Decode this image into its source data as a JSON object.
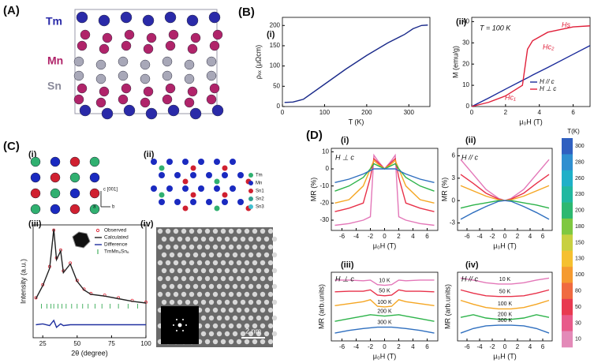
{
  "labels": {
    "A": "(A)",
    "B": "(B)",
    "C": "(C)",
    "D": "(D)"
  },
  "panel_A": {
    "atoms": [
      "Tm",
      "Mn",
      "Sn"
    ]
  },
  "panel_C": {
    "i": {
      "label": "(i)",
      "axes": [
        "c [001]",
        "a",
        "b"
      ]
    },
    "ii": {
      "label": "(ii)",
      "legend": [
        "Tm",
        "Mn",
        "Sn1",
        "Sn2",
        "Sn3"
      ]
    },
    "iv": {
      "label": "(iv)",
      "scale_bar": "2 nm"
    }
  },
  "colorbar": {
    "title": "T(K)",
    "categories": [
      "300",
      "280",
      "260",
      "230",
      "200",
      "180",
      "150",
      "130",
      "100",
      "80",
      "50",
      "30",
      "10"
    ],
    "colors": [
      "#3060c0",
      "#2f8fd0",
      "#1fb0c8",
      "#20b8a0",
      "#2db870",
      "#7fc840",
      "#c8d040",
      "#f5c030",
      "#f59a30",
      "#f06a40",
      "#e83a50",
      "#e85a8a",
      "#e38ab8"
    ]
  },
  "chart_data": [
    {
      "type": "line",
      "label": "(i)",
      "xlabel": "T (K)",
      "ylabel": "ρₓₓ (μΩcm)",
      "x": [
        5,
        25,
        50,
        100,
        150,
        200,
        250,
        290,
        310,
        330,
        345
      ],
      "series": [
        {
          "color": "#1a2a8a",
          "values": [
            10,
            11,
            18,
            55,
            92,
            126,
            157,
            178,
            192,
            200,
            201
          ]
        }
      ],
      "xlim": [
        0,
        350
      ],
      "ylim": [
        0,
        220
      ],
      "xticks": [
        0,
        100,
        200,
        300
      ],
      "yticks": [
        0,
        50,
        100,
        150,
        200
      ]
    },
    {
      "type": "line",
      "label": "(ii)",
      "xlabel": "μ₀H (T)",
      "ylabel": "M (emu/g)",
      "annotations": [
        "T = 100 K",
        "Hs",
        "Hc₂",
        "Hc₁"
      ],
      "x": [
        0,
        1,
        2,
        3,
        3.3,
        3.6,
        4.5,
        6,
        7
      ],
      "series": [
        {
          "name": "H // c",
          "color": "#1a2a9a",
          "values": [
            0,
            4,
            8.2,
            12.3,
            13.5,
            14.8,
            18.4,
            24.6,
            28.7
          ]
        },
        {
          "name": "H ⊥ c",
          "color": "#e0203a",
          "values": [
            0,
            2,
            5,
            10,
            27,
            31,
            35,
            37.5,
            38
          ]
        }
      ],
      "xlim": [
        0,
        7
      ],
      "ylim": [
        0,
        42
      ],
      "xticks": [
        0,
        2,
        4,
        6
      ],
      "yticks": [
        0,
        10,
        20,
        30,
        40
      ]
    },
    {
      "type": "line",
      "label": "(iii)",
      "xlabel": "2θ (degree)",
      "ylabel": "Intensity (a.u.)",
      "x": [
        20,
        25,
        30,
        33,
        35,
        38,
        40,
        45,
        50,
        55,
        60,
        70,
        80,
        90,
        100
      ],
      "series": [
        {
          "name": "Observed",
          "color": "#e03040",
          "marker": "o",
          "values": [
            16,
            31,
            52,
            94,
            62,
            71,
            47,
            56,
            36,
            26,
            21,
            19,
            16,
            13,
            11
          ]
        },
        {
          "name": "Calculated",
          "color": "#222222",
          "values": [
            15,
            30,
            50,
            95,
            60,
            70,
            45,
            55,
            35,
            25,
            20,
            18,
            15,
            12,
            10
          ]
        },
        {
          "name": "Difference",
          "color": "#2030a0",
          "values": [
            -15,
            -14,
            -16,
            -10,
            -18,
            -14,
            -16,
            -15,
            -15,
            -15,
            -15,
            -15,
            -15,
            -15,
            -15
          ]
        },
        {
          "name": "TmMn₆Sn₆",
          "color": "#20a040",
          "positions": [
            24,
            28,
            31,
            33,
            36,
            39,
            42,
            46,
            50,
            54,
            58,
            63,
            68,
            74,
            80,
            87,
            94
          ]
        }
      ],
      "xlim": [
        18,
        100
      ],
      "ylim": [
        -30,
        100
      ],
      "xticks": [
        25,
        50,
        75,
        100
      ]
    },
    {
      "type": "line",
      "label": "(i)",
      "xlabel": "μ₀H (T)",
      "ylabel": "MR (%)",
      "annotations": [
        "H ⊥ c"
      ],
      "x": [
        -7,
        -5,
        -3,
        -2,
        -1.5,
        -1,
        0,
        1,
        1.5,
        2,
        3,
        5,
        7
      ],
      "series": [
        {
          "color": "#e377b8",
          "values": [
            -33,
            -32,
            -30,
            -28,
            8,
            5,
            0,
            5,
            8,
            -28,
            -30,
            -32,
            -33
          ]
        },
        {
          "color": "#e8324a",
          "values": [
            -25,
            -23,
            -20,
            -5,
            6,
            4,
            0,
            4,
            6,
            -5,
            -20,
            -23,
            -25
          ]
        },
        {
          "color": "#f5a623",
          "values": [
            -20,
            -18,
            -10,
            0,
            5,
            3,
            0,
            3,
            5,
            0,
            -10,
            -18,
            -20
          ]
        },
        {
          "color": "#2db34a",
          "values": [
            -13,
            -10,
            -5,
            0,
            3,
            2,
            0,
            2,
            3,
            0,
            -5,
            -10,
            -13
          ]
        },
        {
          "color": "#2f6fbf",
          "values": [
            -8,
            -6,
            -3,
            -1,
            0,
            0,
            0,
            0,
            0,
            -1,
            -3,
            -6,
            -8
          ]
        }
      ],
      "xlim": [
        -7.5,
        7.5
      ],
      "ylim": [
        -36,
        12
      ],
      "xticks": [
        -6,
        -4,
        -2,
        0,
        2,
        4,
        6
      ],
      "yticks": [
        10,
        0,
        -10,
        -20,
        -30
      ]
    },
    {
      "type": "line",
      "label": "(ii)",
      "xlabel": "μ₀H (T)",
      "ylabel": "MR (%)",
      "annotations": [
        "H // c"
      ],
      "x": [
        -7,
        -5,
        -3,
        -1,
        0,
        1,
        3,
        5,
        7
      ],
      "series": [
        {
          "color": "#e377b8",
          "values": [
            5.5,
            3.5,
            1.5,
            0.3,
            0,
            0.3,
            1.5,
            3.5,
            5.5
          ]
        },
        {
          "color": "#e8324a",
          "values": [
            3.5,
            2.3,
            1,
            0.2,
            0,
            0.2,
            1,
            2.3,
            3.5
          ]
        },
        {
          "color": "#f5a623",
          "values": [
            2,
            1.3,
            0.6,
            0.1,
            0,
            0.1,
            0.6,
            1.3,
            2
          ]
        },
        {
          "color": "#2db34a",
          "values": [
            -1,
            -0.6,
            -0.3,
            0,
            0,
            0,
            -0.3,
            -0.6,
            -1
          ]
        },
        {
          "color": "#2f6fbf",
          "values": [
            -2.5,
            -1.6,
            -0.8,
            -0.1,
            0,
            -0.1,
            -0.8,
            -1.6,
            -2.5
          ]
        }
      ],
      "xlim": [
        -7.5,
        7.5
      ],
      "ylim": [
        -4,
        7
      ],
      "xticks": [
        -6,
        -4,
        -2,
        0,
        2,
        4,
        6
      ],
      "yticks": [
        -3,
        0,
        3,
        6
      ]
    },
    {
      "type": "line",
      "label": "(iii)",
      "xlabel": "μ₀H (T)",
      "ylabel": "MR (arb.units)",
      "annotations": [
        "H ⊥ c"
      ],
      "label_curves": true,
      "x": [
        -7,
        -5,
        -3,
        -2,
        -1,
        0,
        1,
        2,
        3,
        5,
        7
      ],
      "series": [
        {
          "name": "10 K",
          "color": "#e377b8",
          "values": [
            9.3,
            9.3,
            9.2,
            9.3,
            8.6,
            8.5,
            8.6,
            9.3,
            9.2,
            9.3,
            9.3
          ]
        },
        {
          "name": "50 K",
          "color": "#e8324a",
          "values": [
            7.5,
            7.6,
            7.6,
            7.8,
            7,
            6.9,
            7,
            7.8,
            7.6,
            7.6,
            7.5
          ]
        },
        {
          "name": "100 K",
          "color": "#f5a623",
          "values": [
            5.4,
            5.7,
            6,
            6.3,
            5.3,
            5.2,
            5.3,
            6.3,
            6,
            5.7,
            5.4
          ]
        },
        {
          "name": "200 K",
          "color": "#2db34a",
          "values": [
            3,
            3.4,
            3.8,
            4,
            3.9,
            3.8,
            3.9,
            4,
            3.8,
            3.4,
            3
          ]
        },
        {
          "name": "300 K",
          "color": "#2f6fbf",
          "values": [
            1.2,
            1.6,
            1.9,
            2,
            2.1,
            2.1,
            2.1,
            2,
            1.9,
            1.6,
            1.2
          ]
        }
      ],
      "xlim": [
        -7.5,
        7.5
      ],
      "ylim": [
        0,
        10.5
      ],
      "xticks": [
        -6,
        -4,
        -2,
        0,
        2,
        4,
        6
      ]
    },
    {
      "type": "line",
      "label": "(iv)",
      "xlabel": "μ₀H (T)",
      "ylabel": "MR (arb.units)",
      "annotations": [
        "H // c"
      ],
      "label_curves": true,
      "x": [
        -7,
        -5,
        -3,
        -1,
        0,
        1,
        3,
        5,
        7
      ],
      "series": [
        {
          "name": "10 K",
          "color": "#e377b8",
          "values": [
            9.6,
            9.3,
            8.9,
            8.7,
            8.7,
            8.7,
            8.9,
            9.3,
            9.6
          ]
        },
        {
          "name": "50 K",
          "color": "#e8324a",
          "values": [
            7.8,
            7.3,
            6.9,
            6.8,
            6.8,
            6.8,
            6.9,
            7.3,
            7.8
          ]
        },
        {
          "name": "100 K",
          "color": "#f5a623",
          "values": [
            6.2,
            5.6,
            5.1,
            4.9,
            4.9,
            4.9,
            5.1,
            5.6,
            6.2
          ]
        },
        {
          "name": "200 K",
          "color": "#2db34a",
          "values": [
            3.6,
            4,
            3.5,
            3.3,
            3.3,
            3.3,
            3.5,
            4,
            3.6
          ]
        },
        {
          "name": "300 K",
          "color": "#2f6fbf",
          "values": [
            1.2,
            1.9,
            2.3,
            2.4,
            2.4,
            2.4,
            2.3,
            1.9,
            1.2
          ]
        }
      ],
      "xlim": [
        -7.5,
        7.5
      ],
      "ylim": [
        0,
        10.5
      ],
      "xticks": [
        -6,
        -4,
        -2,
        0,
        2,
        4,
        6
      ]
    }
  ]
}
